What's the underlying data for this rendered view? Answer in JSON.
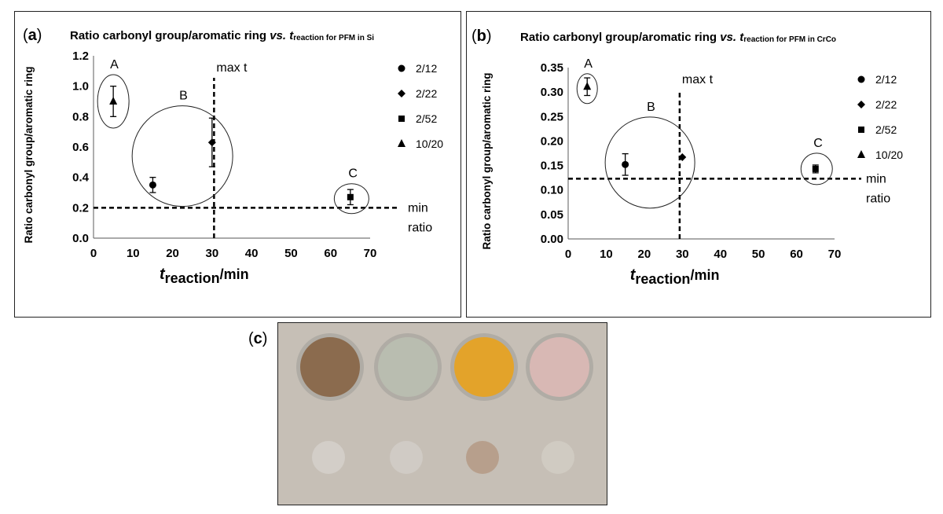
{
  "chart_data": [
    {
      "type": "scatter",
      "panel_label": "a",
      "title_main": "Ratio carbonyl group/aromatic ring ",
      "title_vs": "vs.",
      "title_t": "t",
      "title_sub": "reaction for PFM in Si",
      "xlabel_t": "t",
      "xlabel_sub": "reaction",
      "xlabel_unit": "/min",
      "ylabel": "Ratio carbonyl group/aromatic ring",
      "xlim": [
        0,
        70
      ],
      "ylim": [
        0,
        1.2
      ],
      "xticks": [
        "0",
        "10",
        "20",
        "30",
        "40",
        "50",
        "60",
        "70"
      ],
      "yticks": [
        "0.0",
        "0.2",
        "0.4",
        "0.6",
        "0.8",
        "1.0",
        "1.2"
      ],
      "series": [
        {
          "name": "2/12",
          "marker": "circle",
          "points": [
            {
              "x": 15,
              "y": 0.35,
              "err": 0.05
            }
          ]
        },
        {
          "name": "2/22",
          "marker": "diamond",
          "points": [
            {
              "x": 30,
              "y": 0.63,
              "err": 0.16
            }
          ]
        },
        {
          "name": "2/52",
          "marker": "square",
          "points": [
            {
              "x": 65,
              "y": 0.27,
              "err": 0.05
            }
          ]
        },
        {
          "name": "10/20",
          "marker": "triangle",
          "points": [
            {
              "x": 5,
              "y": 0.9,
              "err": 0.1
            }
          ]
        }
      ],
      "vline": {
        "x": 30.5,
        "label": "max t"
      },
      "hline": {
        "y": 0.2,
        "label1": "min",
        "label2": "ratio"
      },
      "groups": [
        {
          "label": "A",
          "cx": 5,
          "cy": 0.9
        },
        {
          "label": "B",
          "cx": 22.5,
          "cy": 0.54
        },
        {
          "label": "C",
          "cx": 65.3,
          "cy": 0.26
        }
      ]
    },
    {
      "type": "scatter",
      "panel_label": "b",
      "title_main": "Ratio carbonyl group/aromatic ring ",
      "title_vs": "vs.",
      "title_t": "t",
      "title_sub": "reaction for PFM in CrCo",
      "xlabel_t": "t",
      "xlabel_sub": "reaction",
      "xlabel_unit": "/min",
      "ylabel": "Ratio carbonyl group/aromatic ring",
      "xlim": [
        0,
        70
      ],
      "ylim": [
        0,
        0.35
      ],
      "xticks": [
        "0",
        "10",
        "20",
        "30",
        "40",
        "50",
        "60",
        "70"
      ],
      "yticks": [
        "0.00",
        "0.05",
        "0.10",
        "0.15",
        "0.20",
        "0.25",
        "0.30",
        "0.35"
      ],
      "series": [
        {
          "name": "2/12",
          "marker": "circle",
          "points": [
            {
              "x": 15,
              "y": 0.152,
              "err": 0.022
            }
          ]
        },
        {
          "name": "2/22",
          "marker": "diamond",
          "points": [
            {
              "x": 30,
              "y": 0.167,
              "err": 0
            }
          ]
        },
        {
          "name": "2/52",
          "marker": "square",
          "points": [
            {
              "x": 65,
              "y": 0.143,
              "err": 0.008
            }
          ]
        },
        {
          "name": "10/20",
          "marker": "triangle",
          "points": [
            {
              "x": 5,
              "y": 0.311,
              "err": 0.018
            }
          ]
        }
      ],
      "vline": {
        "x": 29.3,
        "label": "max t"
      },
      "hline": {
        "y": 0.123,
        "label1": "min",
        "label2": "ratio"
      },
      "groups": [
        {
          "label": "A",
          "cx": 5,
          "cy": 0.307
        },
        {
          "label": "B",
          "cx": 21.5,
          "cy": 0.156
        },
        {
          "label": "C",
          "cx": 65.3,
          "cy": 0.143
        }
      ]
    }
  ],
  "photo": {
    "panel_label": "c",
    "background": "#c6bfb6",
    "discs_top": [
      "#8b6b4e",
      "#b9bdb0",
      "#e3a32a",
      "#d8b8b4"
    ],
    "discs_bottom": [
      "#d3cec8",
      "#d0cbc5",
      "#b79f8c",
      "#d0cbc2"
    ]
  }
}
